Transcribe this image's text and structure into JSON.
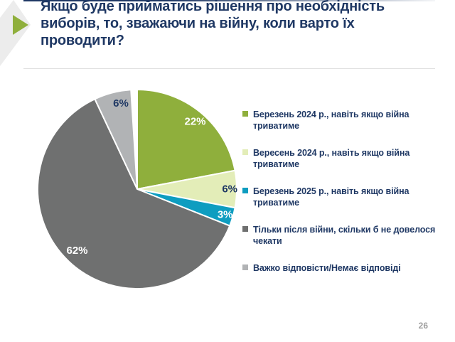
{
  "slide": {
    "title": "Якщо буде прийматись рішення про необхідність\nвиборів, то, зважаючи на війну, коли варто їх\nпроводити?",
    "page_number": "26"
  },
  "colors": {
    "title_navy": "#1F3864",
    "accent_green": "#8FAF3C",
    "decor_gray": "#ECECEC",
    "divider_gray": "#E0E0E0",
    "page_number_gray": "#9E9E9E"
  },
  "chart_data": {
    "type": "pie",
    "title": "Якщо буде прийматись рішення про необхідність виборів, то, зважаючи на війну, коли варто їх проводити?",
    "unit": "%",
    "start_angle": "top",
    "direction": "clockwise",
    "legend_position": "right",
    "slices": [
      {
        "label": "Березень 2024 р., навіть якщо війна\nтриватиме",
        "value": 22,
        "color": "#8FAF3C",
        "data_label": "22%",
        "data_label_color": "#FFFFFF"
      },
      {
        "label": "Вересень 2024 р., навіть якщо війна\nтриватиме",
        "value": 6,
        "color": "#E3EDB8",
        "data_label": "6%",
        "data_label_color": "#1F3864"
      },
      {
        "label": "Березень 2025 р., навіть якщо війна\nтриватиме",
        "value": 3,
        "color": "#0E9DC0",
        "data_label": "3%",
        "data_label_color": "#FFFFFF"
      },
      {
        "label": "Тільки після війни, скільки б не довелося\nчекати",
        "value": 62,
        "color": "#6F7070",
        "data_label": "62%",
        "data_label_color": "#FFFFFF"
      },
      {
        "label": "Важко відповісти/Немає відповіді",
        "value": 6,
        "color": "#B1B3B5",
        "data_label": "6%",
        "data_label_color": "#1F3864"
      }
    ]
  }
}
